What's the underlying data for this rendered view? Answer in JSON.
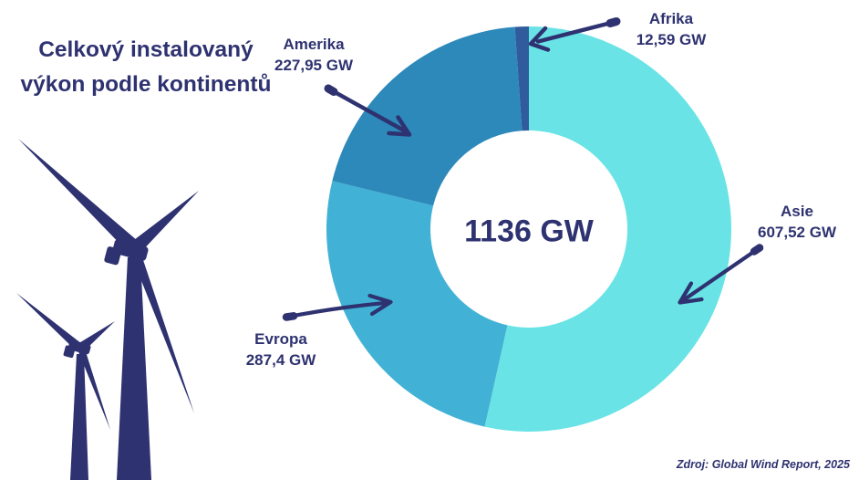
{
  "chart_data": {
    "type": "pie",
    "variant": "donut",
    "title": "Celkový instalovaný výkon podle kontinentů",
    "center_label": "1136 GW",
    "unit": "GW",
    "legend_position": "none",
    "segments": [
      {
        "label": "Asie",
        "value": 607.52,
        "value_label": "607,52 GW",
        "color": "#69e3e5"
      },
      {
        "label": "Evropa",
        "value": 287.4,
        "value_label": "287,4 GW",
        "color": "#41b2d5"
      },
      {
        "label": "Amerika",
        "value": 227.95,
        "value_label": "227,95 GW",
        "color": "#2d89ba"
      },
      {
        "label": "Afrika",
        "value": 12.59,
        "value_label": "12,59 GW",
        "color": "#305c9e"
      }
    ],
    "source": "Zdroj: Global Wind Report, 2025"
  },
  "colors": {
    "accent_navy": "#2e3270",
    "background": "#ffffff"
  },
  "icons": {
    "wind_turbine": "wind-turbine-silhouette",
    "annotation_arrow": "hand-drawn-arrow"
  }
}
